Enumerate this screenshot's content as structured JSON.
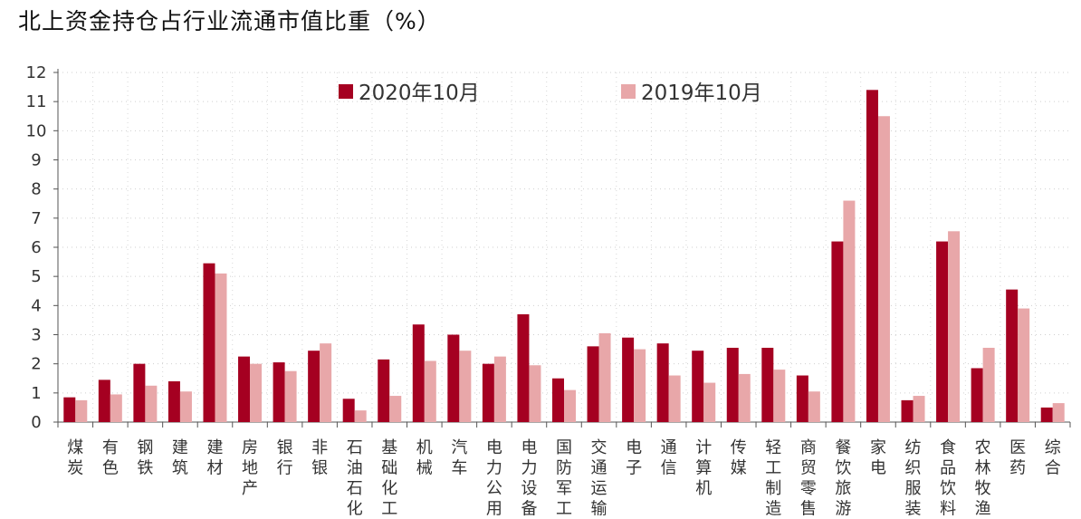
{
  "chart_data": {
    "type": "bar",
    "title": "北上资金持仓占行业流通市值比重（%）",
    "ylim": [
      0,
      12
    ],
    "yticks": [
      0,
      1,
      2,
      3,
      4,
      5,
      6,
      7,
      8,
      9,
      10,
      11,
      12
    ],
    "grid": true,
    "legend_position": "top",
    "categories": [
      "煤炭",
      "有色",
      "钢铁",
      "建筑",
      "建材",
      "房地产",
      "银行",
      "非银",
      "石油石化",
      "基础化工",
      "机械",
      "汽车",
      "电力公用",
      "电力设备",
      "国防军工",
      "交通运输",
      "电子",
      "通信",
      "计算机",
      "传媒",
      "轻工制造",
      "商贸零售",
      "餐饮旅游",
      "家电",
      "纺织服装",
      "食品饮料",
      "农林牧渔",
      "医药",
      "综合"
    ],
    "series": [
      {
        "name": "2020年10月",
        "color": "#A50021",
        "values": [
          0.85,
          1.45,
          2.0,
          1.4,
          5.45,
          2.25,
          2.05,
          2.45,
          0.8,
          2.15,
          3.35,
          3.0,
          2.0,
          3.7,
          1.5,
          2.6,
          2.9,
          2.7,
          2.45,
          2.55,
          2.55,
          1.6,
          6.2,
          11.4,
          0.75,
          6.2,
          1.85,
          4.55,
          0.5
        ]
      },
      {
        "name": "2019年10月",
        "color": "#E8A7A9",
        "values": [
          0.75,
          0.95,
          1.25,
          1.05,
          5.1,
          2.0,
          1.75,
          2.7,
          0.4,
          0.9,
          2.1,
          2.45,
          2.25,
          1.95,
          1.1,
          3.05,
          2.5,
          1.6,
          1.35,
          1.65,
          1.8,
          1.05,
          7.6,
          10.5,
          0.9,
          6.55,
          2.55,
          3.9,
          0.65
        ]
      }
    ]
  }
}
